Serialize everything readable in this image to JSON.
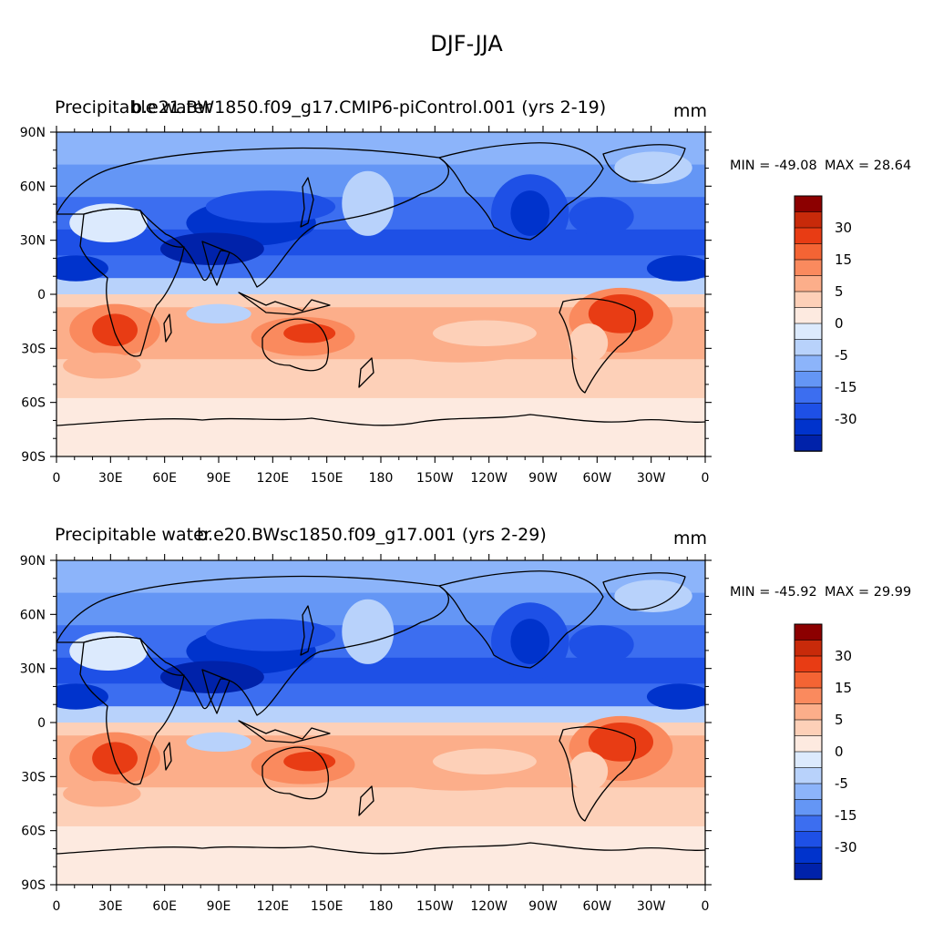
{
  "figure_title": "DJF-JJA",
  "colors": {
    "levels": [
      "#000080",
      "#0022aa",
      "#0033cc",
      "#1e50e6",
      "#3c6ef0",
      "#6496f5",
      "#8cb4fa",
      "#b8d2fb",
      "#dceafd",
      "#fdeae0",
      "#fdd0b8",
      "#fcae8a",
      "#fa8a5e",
      "#f46434",
      "#e83c14",
      "#c82a0a",
      "#8c0000"
    ],
    "land_outline": "#000000"
  },
  "chart_data": [
    {
      "type": "heatmap",
      "title_left_overlap": [
        "Precipitable water",
        "b.e21.BW1850.f09_g17.CMIP6-piControl.001 (yrs 2-19)"
      ],
      "units": "mm",
      "min_label": "MIN = -49.08",
      "max_label": "MAX =  28.64",
      "min": -49.08,
      "max": 28.64,
      "x_ticks": [
        "0",
        "30E",
        "60E",
        "90E",
        "120E",
        "150E",
        "180",
        "150W",
        "120W",
        "90W",
        "60W",
        "30W",
        "0"
      ],
      "y_ticks": [
        "90N",
        "60N",
        "30N",
        "0",
        "30S",
        "60S",
        "90S"
      ],
      "xlim": [
        0,
        360
      ],
      "ylim": [
        -90,
        90
      ],
      "colorbar_labels": [
        "30",
        "15",
        "5",
        "0",
        "-5",
        "-15",
        "-30"
      ]
    },
    {
      "type": "heatmap",
      "title_left_overlap": [
        "Precipitable water",
        "b.e20.BWsc1850.f09_g17.001 (yrs 2-29)"
      ],
      "units": "mm",
      "min_label": "MIN = -45.92",
      "max_label": "MAX =  29.99",
      "min": -45.92,
      "max": 29.99,
      "x_ticks": [
        "0",
        "30E",
        "60E",
        "90E",
        "120E",
        "150E",
        "180",
        "150W",
        "120W",
        "90W",
        "60W",
        "30W",
        "0"
      ],
      "y_ticks": [
        "90N",
        "60N",
        "30N",
        "0",
        "30S",
        "60S",
        "90S"
      ],
      "xlim": [
        0,
        360
      ],
      "ylim": [
        -90,
        90
      ],
      "colorbar_labels": [
        "30",
        "15",
        "5",
        "0",
        "-5",
        "-15",
        "-30"
      ]
    }
  ]
}
